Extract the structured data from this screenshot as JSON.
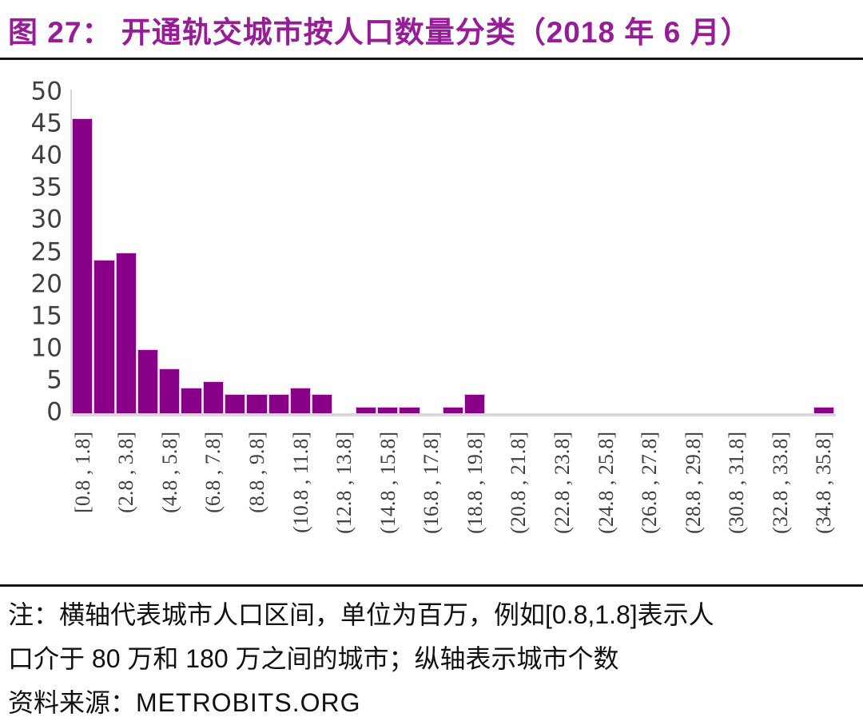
{
  "header": {
    "title": "图 27： 开通轨交城市按人口数量分类（2018 年 6 月）"
  },
  "chart_data": {
    "type": "bar",
    "title": "开通轨交城市按人口数量分类（2018 年 6 月）",
    "figure_label": "图 27",
    "xlabel": "",
    "ylabel": "",
    "x_unit": "百万人（城市人口区间）",
    "y_unit": "城市个数",
    "bin_start": 0.8,
    "bin_width_millions": 1.0,
    "n_bins": 35,
    "values": [
      46,
      24,
      25,
      10,
      7,
      4,
      5,
      3,
      3,
      3,
      4,
      3,
      0,
      1,
      1,
      1,
      0,
      1,
      3,
      0,
      0,
      0,
      0,
      0,
      0,
      0,
      0,
      0,
      0,
      0,
      0,
      0,
      0,
      0,
      1
    ],
    "x_tick_labels": [
      "[0.8 , 1.8]",
      "(2.8 , 3.8]",
      "(4.8 , 5.8]",
      "(6.8 , 7.8]",
      "(8.8 , 9.8]",
      "(10.8 , 11.8]",
      "(12.8 , 13.8]",
      "(14.8 , 15.8]",
      "(16.8 , 17.8]",
      "(18.8 , 19.8]",
      "(20.8 , 21.8]",
      "(22.8 , 23.8]",
      "(24.8 , 25.8]",
      "(26.8 , 27.8]",
      "(28.8 , 29.8]",
      "(30.8 , 31.8]",
      "(32.8 , 33.8]",
      "(34.8 , 35.8]"
    ],
    "x_tick_every": 2,
    "y_ticks": [
      0,
      5,
      10,
      15,
      20,
      25,
      30,
      35,
      40,
      45,
      50
    ],
    "ylim": [
      0,
      50
    ],
    "grid": false,
    "legend": "none",
    "bar_color": "#870087",
    "bar_border_color": "#e9bde9",
    "axis_line_color": "#d9d9d9",
    "title_color": "#981b98"
  },
  "notes": {
    "line1": "注：横轴代表城市人口区间，单位为百万，例如[0.8,1.8]表示人",
    "line2": "口介于 80 万和 180 万之间的城市；纵轴表示城市个数",
    "source_label": "资料来源：",
    "source_value": "METROBITS.ORG"
  }
}
